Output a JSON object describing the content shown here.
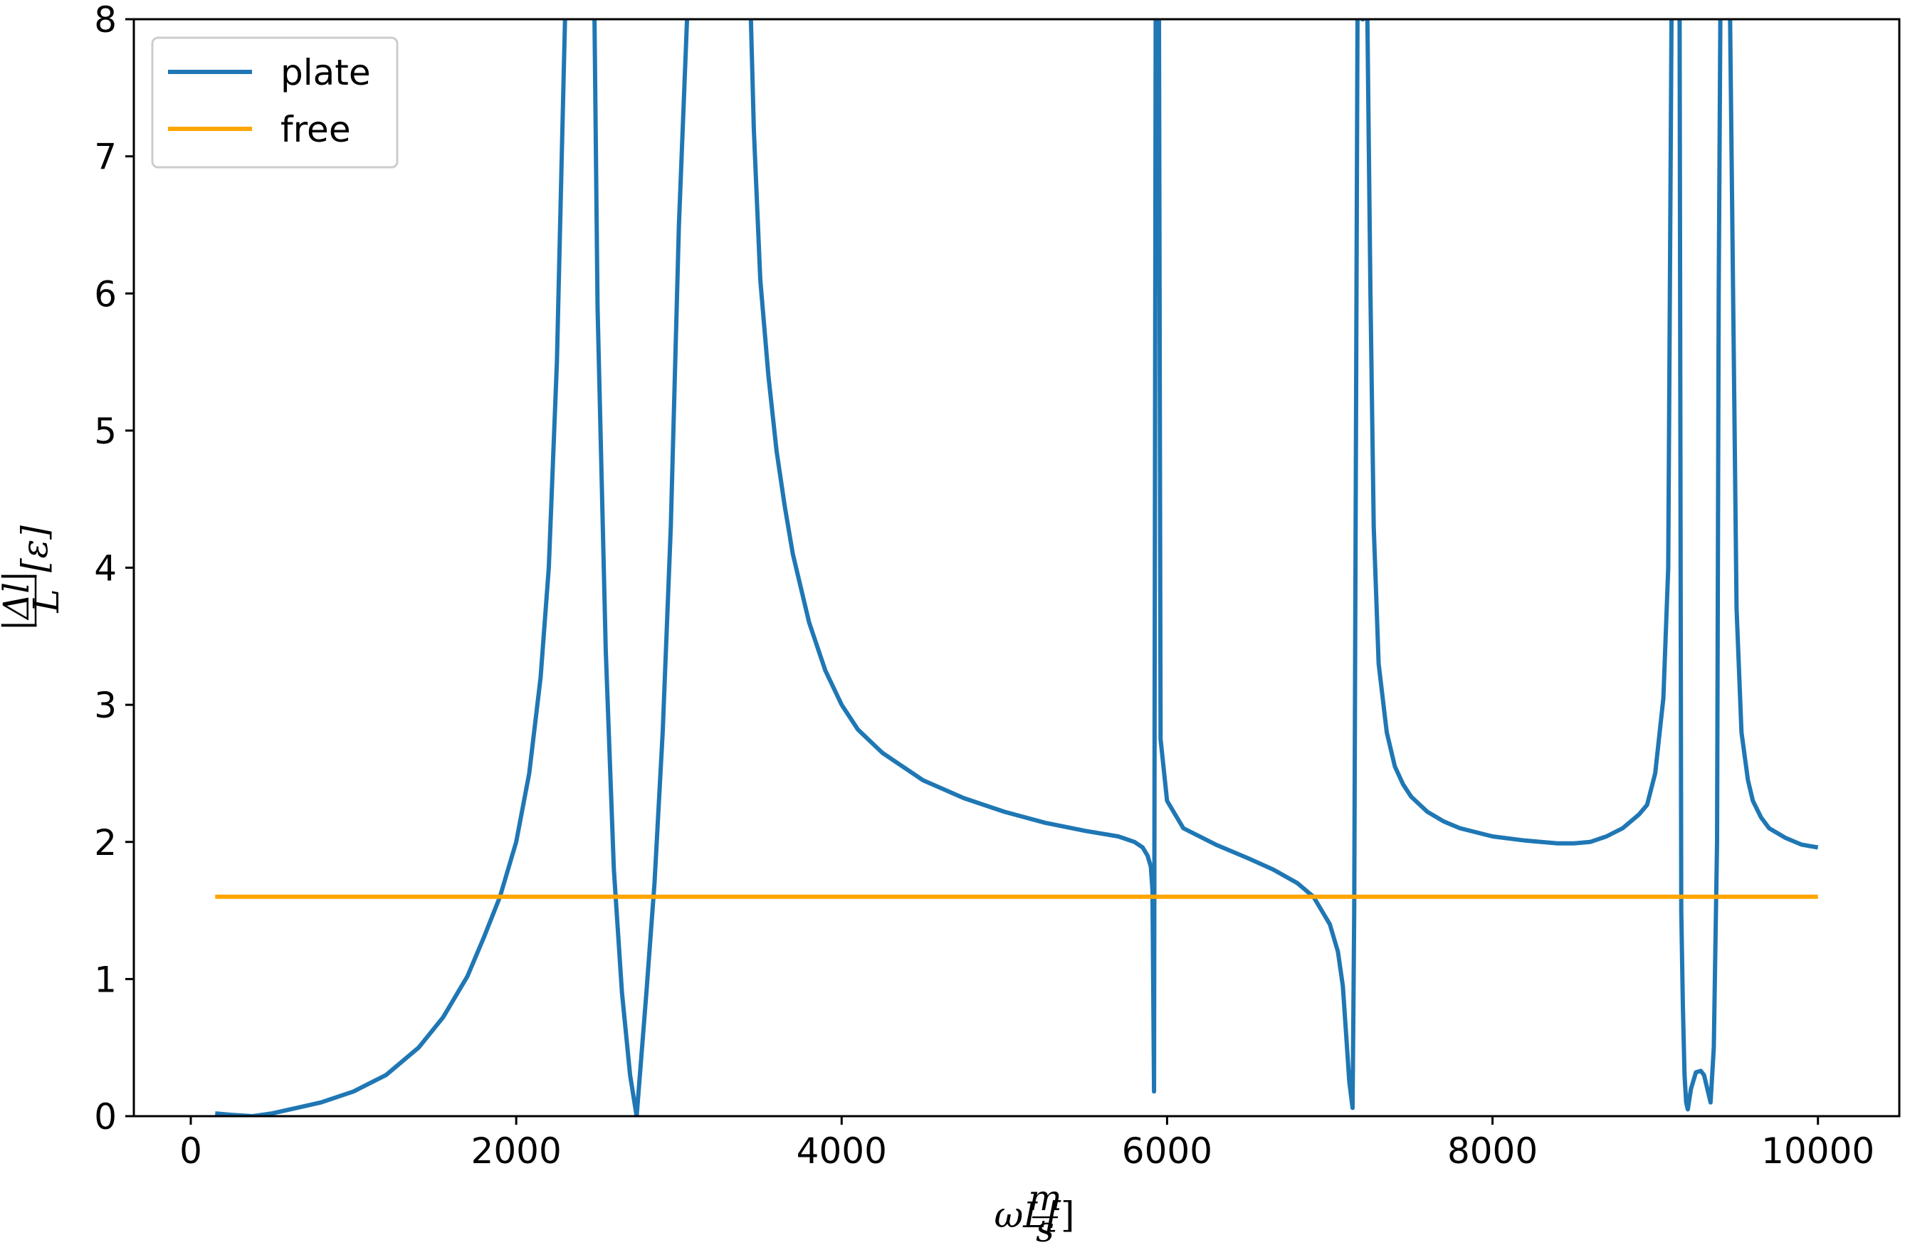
{
  "chart_data": {
    "type": "line",
    "title": "",
    "xlabel": "ωL[m/s]",
    "xlabel_parts": {
      "main": "ωL[",
      "num": "m",
      "den": "s",
      "close": "]"
    },
    "ylabel": "|Δl|/L [ε]",
    "ylabel_parts": {
      "num": "|Δl|",
      "den": "L",
      "bracket": "[ε]"
    },
    "xlim": [
      -350,
      10500
    ],
    "ylim": [
      0,
      8
    ],
    "xticks": [
      0,
      2000,
      4000,
      6000,
      8000,
      10000
    ],
    "xtick_labels": [
      "0",
      "2000",
      "4000",
      "6000",
      "8000",
      "10000"
    ],
    "yticks": [
      0,
      1,
      2,
      3,
      4,
      5,
      6,
      7,
      8
    ],
    "ytick_labels": [
      "0",
      "1",
      "2",
      "3",
      "4",
      "5",
      "6",
      "7",
      "8"
    ],
    "grid": false,
    "legend_position": "upper-left",
    "series": [
      {
        "name": "plate",
        "color": "#1f77b4",
        "x": [
          150,
          250,
          380,
          500,
          650,
          800,
          1000,
          1200,
          1400,
          1550,
          1700,
          1800,
          1900,
          2000,
          2080,
          2150,
          2200,
          2250,
          2280,
          2300,
          2310,
          2480,
          2500,
          2550,
          2600,
          2650,
          2700,
          2740,
          2800,
          2850,
          2900,
          2950,
          3000,
          3050,
          3060,
          3440,
          3460,
          3500,
          3550,
          3600,
          3650,
          3700,
          3800,
          3900,
          4000,
          4100,
          4250,
          4500,
          4750,
          5000,
          5250,
          5500,
          5700,
          5800,
          5850,
          5880,
          5900,
          5910,
          5920,
          5930,
          5940,
          5950,
          5960,
          6000,
          6100,
          6300,
          6500,
          6650,
          6800,
          6900,
          6950,
          7000,
          7050,
          7080,
          7100,
          7120,
          7140,
          7150,
          7170,
          7180,
          7190,
          7200,
          7205,
          7230,
          7250,
          7270,
          7300,
          7350,
          7400,
          7450,
          7500,
          7600,
          7700,
          7800,
          8000,
          8200,
          8400,
          8500,
          8600,
          8700,
          8800,
          8900,
          8950,
          9000,
          9050,
          9080,
          9100,
          9110,
          9120,
          9150,
          9160,
          9170,
          9180,
          9190,
          9200,
          9220,
          9250,
          9280,
          9300,
          9320,
          9340,
          9360,
          9380,
          9390,
          9400,
          9420,
          9440,
          9460,
          9500,
          9530,
          9570,
          9600,
          9650,
          9700,
          9800,
          9900,
          10000
        ],
        "y": [
          0.02,
          0.01,
          0.0,
          0.02,
          0.06,
          0.1,
          0.18,
          0.3,
          0.5,
          0.72,
          1.02,
          1.3,
          1.6,
          2.0,
          2.5,
          3.2,
          4.0,
          5.5,
          7.0,
          8.0,
          8.1,
          8.1,
          5.9,
          3.4,
          1.8,
          0.9,
          0.3,
          0.0,
          0.9,
          1.7,
          2.8,
          4.3,
          6.5,
          8.0,
          8.1,
          8.1,
          7.2,
          6.1,
          5.4,
          4.85,
          4.45,
          4.1,
          3.6,
          3.25,
          3.0,
          2.82,
          2.65,
          2.45,
          2.32,
          2.22,
          2.14,
          2.08,
          2.04,
          2.0,
          1.96,
          1.9,
          1.82,
          1.65,
          0.18,
          8.0,
          8.1,
          8.1,
          2.75,
          2.3,
          2.1,
          1.98,
          1.88,
          1.8,
          1.7,
          1.6,
          1.5,
          1.4,
          1.2,
          0.95,
          0.6,
          0.25,
          0.06,
          1.5,
          8.0,
          8.1,
          8.1,
          8.0,
          8.0,
          8.1,
          6.0,
          4.3,
          3.3,
          2.8,
          2.55,
          2.42,
          2.33,
          2.22,
          2.15,
          2.1,
          2.04,
          2.01,
          1.99,
          1.99,
          2.0,
          2.04,
          2.1,
          2.2,
          2.27,
          2.5,
          3.05,
          4.0,
          8.0,
          8.1,
          8.1,
          8.0,
          1.5,
          0.8,
          0.3,
          0.1,
          0.05,
          0.2,
          0.32,
          0.33,
          0.3,
          0.2,
          0.1,
          0.5,
          2.0,
          6.0,
          8.0,
          8.1,
          8.1,
          8.0,
          3.7,
          2.8,
          2.45,
          2.3,
          2.18,
          2.1,
          2.03,
          1.98,
          1.96
        ]
      },
      {
        "name": "free",
        "color": "#ffa500",
        "x": [
          150,
          10000
        ],
        "y": [
          1.6,
          1.6
        ]
      }
    ]
  }
}
